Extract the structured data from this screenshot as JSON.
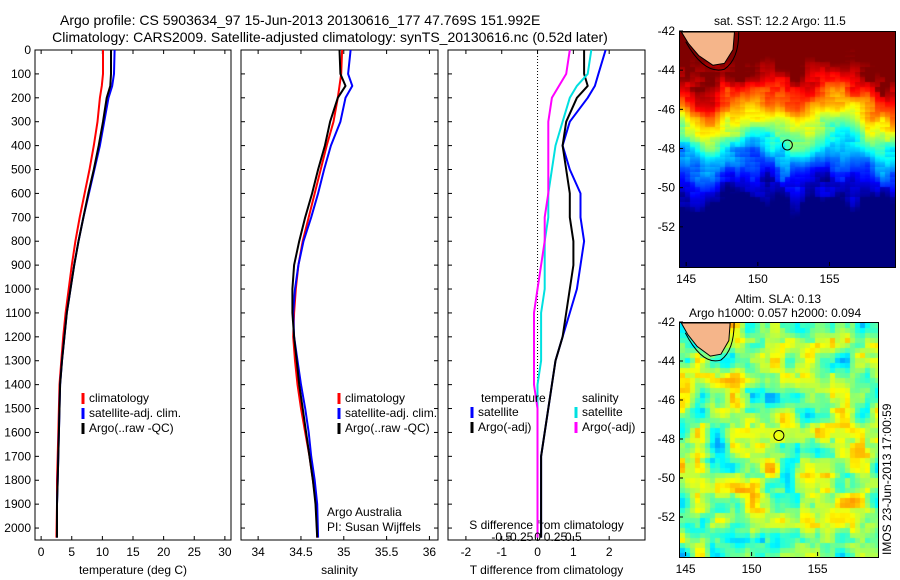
{
  "titles": {
    "line1": "Argo profile: CS 5903634_97 15-Jun-2013 20130616_177 47.769S 151.992E",
    "line2": "Climatology: CARS2009. Satellite-adjusted climatology: synTS_20130616.nc (0.52d later)"
  },
  "chart_data": [
    {
      "type": "line",
      "name": "temperature",
      "xlabel": "temperature (deg C)",
      "ylabel": "",
      "xlim": [
        -1,
        31
      ],
      "ylim": [
        2050,
        0
      ],
      "xticks": [
        0,
        5,
        10,
        15,
        20,
        25,
        30
      ],
      "yticks": [
        0,
        100,
        200,
        300,
        400,
        500,
        600,
        700,
        800,
        900,
        1000,
        1100,
        1200,
        1300,
        1400,
        1500,
        1600,
        1700,
        1800,
        1900,
        2000
      ],
      "legend": [
        "climatology",
        "satellite-adj. clim.",
        "Argo(..raw -QC)"
      ],
      "series": [
        {
          "name": "climatology",
          "color": "#ff0000",
          "x": [
            10.1,
            10.1,
            9.9,
            9.6,
            9.2,
            8.6,
            7.9,
            7.1,
            6.3,
            5.6,
            5.0,
            4.5,
            4.0,
            3.6,
            3.3,
            3.0,
            2.9,
            2.8,
            2.7,
            2.6,
            2.6,
            2.5
          ],
          "y": [
            0,
            100,
            150,
            200,
            300,
            400,
            500,
            600,
            700,
            800,
            900,
            1000,
            1100,
            1200,
            1300,
            1400,
            1500,
            1600,
            1700,
            1800,
            1900,
            2040
          ]
        },
        {
          "name": "satellite-adj. clim.",
          "color": "#0000ff",
          "x": [
            12.0,
            11.9,
            11.6,
            11.0,
            10.3,
            9.6,
            8.7,
            7.8,
            6.9,
            6.1,
            5.4,
            4.8,
            4.2,
            3.8,
            3.4,
            3.1,
            3.0,
            2.9,
            2.8,
            2.7,
            2.6,
            2.6
          ],
          "y": [
            0,
            100,
            150,
            200,
            300,
            400,
            500,
            600,
            700,
            800,
            900,
            1000,
            1100,
            1200,
            1300,
            1400,
            1500,
            1600,
            1700,
            1800,
            1900,
            2040
          ]
        },
        {
          "name": "Argo(..raw -QC)",
          "color": "#000000",
          "x": [
            11.4,
            11.4,
            11.3,
            10.7,
            10.1,
            9.4,
            8.6,
            7.7,
            6.9,
            6.1,
            5.4,
            4.8,
            4.2,
            3.8,
            3.4,
            3.1,
            3.0,
            2.9,
            2.8,
            2.7,
            2.6,
            2.6
          ],
          "y": [
            0,
            100,
            150,
            200,
            300,
            400,
            500,
            600,
            700,
            800,
            900,
            1000,
            1100,
            1200,
            1300,
            1400,
            1500,
            1600,
            1700,
            1800,
            1900,
            2040
          ]
        }
      ]
    },
    {
      "type": "line",
      "name": "salinity",
      "xlabel": "salinity",
      "xlim": [
        33.8,
        36.1
      ],
      "ylim": [
        2050,
        0
      ],
      "xticks": [
        34,
        34.5,
        35,
        35.5,
        36
      ],
      "xticklabels": [
        "34",
        "34.5",
        "35",
        "35.5",
        "36"
      ],
      "legend": [
        "climatology",
        "satellite-adj. clim.",
        "Argo(..raw -QC)"
      ],
      "annotation": [
        "Argo Australia",
        "PI: Susan Wijffels"
      ],
      "series": [
        {
          "name": "climatology",
          "color": "#ff0000",
          "x": [
            34.98,
            34.97,
            34.95,
            34.93,
            34.88,
            34.8,
            34.73,
            34.66,
            34.59,
            34.52,
            34.47,
            34.44,
            34.42,
            34.41,
            34.43,
            34.46,
            34.5,
            34.55,
            34.6,
            34.64,
            34.68,
            34.69
          ],
          "y": [
            0,
            100,
            150,
            200,
            300,
            400,
            500,
            600,
            700,
            800,
            900,
            1000,
            1100,
            1200,
            1300,
            1400,
            1500,
            1600,
            1700,
            1800,
            1900,
            2040
          ]
        },
        {
          "name": "satellite-adj. clim.",
          "color": "#0000ff",
          "x": [
            35.08,
            35.05,
            35.1,
            35.02,
            34.96,
            34.85,
            34.77,
            34.7,
            34.62,
            34.53,
            34.47,
            34.43,
            34.41,
            34.42,
            34.46,
            34.5,
            34.55,
            34.59,
            34.62,
            34.66,
            34.69,
            34.7
          ],
          "y": [
            0,
            100,
            150,
            200,
            300,
            400,
            500,
            600,
            700,
            800,
            900,
            1000,
            1100,
            1200,
            1300,
            1400,
            1500,
            1600,
            1700,
            1800,
            1900,
            2040
          ]
        },
        {
          "name": "Argo(..raw -QC)",
          "color": "#000000",
          "x": [
            34.95,
            34.96,
            35.02,
            34.93,
            34.84,
            34.78,
            34.7,
            34.63,
            34.55,
            34.48,
            34.42,
            34.4,
            34.4,
            34.42,
            34.45,
            34.48,
            34.52,
            34.56,
            34.6,
            34.64,
            34.67,
            34.69
          ],
          "y": [
            0,
            100,
            150,
            200,
            300,
            400,
            500,
            600,
            700,
            800,
            900,
            1000,
            1100,
            1200,
            1300,
            1400,
            1500,
            1600,
            1700,
            1800,
            1900,
            2040
          ]
        }
      ]
    },
    {
      "type": "line",
      "name": "differences",
      "xlabel": "T difference from climatology",
      "xlabel_top": "S difference from climatology",
      "xlim": [
        -2.5,
        3
      ],
      "ylim": [
        2050,
        0
      ],
      "xticks": [
        -2,
        -1,
        0,
        1,
        2
      ],
      "xticklabels": [
        "-2",
        "-1",
        "0",
        "1",
        "2"
      ],
      "sticks": [
        -1,
        -0.5,
        0.5,
        1
      ],
      "sticklabels": [
        "-0.5",
        "-0.25",
        "0.25",
        "0.5"
      ],
      "legend_headers": [
        "temperature",
        "salinity"
      ],
      "legend_left": [
        "satellite",
        "Argo(-adj)"
      ],
      "legend_right": [
        "satellite",
        "Argo(-adj)"
      ],
      "series": [
        {
          "name": "temperature satellite",
          "color": "#0000ff",
          "x": [
            1.9,
            1.7,
            1.6,
            1.4,
            0.9,
            0.7,
            0.9,
            1.2,
            1.2,
            1.3,
            1.2,
            1.1,
            0.9,
            0.7,
            0.5,
            0.4,
            0.3,
            0.2,
            0.1,
            0.1,
            0.1,
            0.1
          ],
          "y": [
            0,
            100,
            150,
            200,
            300,
            400,
            500,
            600,
            700,
            800,
            900,
            1000,
            1100,
            1200,
            1300,
            1400,
            1500,
            1600,
            1700,
            1800,
            1900,
            2040
          ]
        },
        {
          "name": "temperature Argo(-adj)",
          "color": "#000000",
          "x": [
            1.3,
            1.3,
            1.4,
            1.1,
            0.8,
            0.7,
            0.8,
            0.9,
            0.9,
            1.0,
            1.0,
            0.9,
            0.8,
            0.7,
            0.5,
            0.4,
            0.3,
            0.2,
            0.1,
            0.1,
            0.1,
            0.1
          ],
          "y": [
            0,
            100,
            150,
            200,
            300,
            400,
            500,
            600,
            700,
            800,
            900,
            1000,
            1100,
            1200,
            1300,
            1400,
            1500,
            1600,
            1700,
            1800,
            1900,
            2040
          ]
        },
        {
          "name": "salinity satellite",
          "color": "#00e0e0",
          "x": [
            1.5,
            1.4,
            1.1,
            0.9,
            0.7,
            0.5,
            0.4,
            0.3,
            0.3,
            0.2,
            0.2,
            0.2,
            0.1,
            0.1,
            0.1,
            0.0,
            0.0,
            0.0,
            0.0,
            0.0,
            0.0,
            0.0
          ],
          "y": [
            0,
            100,
            150,
            200,
            300,
            400,
            500,
            600,
            700,
            800,
            900,
            1000,
            1100,
            1200,
            1300,
            1400,
            1500,
            1600,
            1700,
            1800,
            1900,
            2040
          ]
        },
        {
          "name": "salinity Argo(-adj)",
          "color": "#ff00ff",
          "x": [
            0.9,
            0.8,
            0.6,
            0.4,
            0.3,
            0.3,
            0.3,
            0.3,
            0.2,
            0.2,
            0.1,
            0.0,
            -0.1,
            -0.1,
            -0.1,
            -0.1,
            0.0,
            0.0,
            0.0,
            0.0,
            0.0,
            0.0
          ],
          "y": [
            0,
            100,
            150,
            200,
            300,
            400,
            500,
            600,
            700,
            800,
            900,
            1000,
            1100,
            1200,
            1300,
            1400,
            1500,
            1600,
            1700,
            1800,
            1900,
            2040
          ]
        }
      ]
    },
    {
      "type": "heatmap",
      "name": "sst-map",
      "title": "sat. SST: 12.2  Argo: 11.5",
      "xlim": [
        144.5,
        159.5
      ],
      "ylim": [
        -54,
        -42
      ],
      "xticks": [
        145,
        150,
        155
      ],
      "yticks": [
        -42,
        -44,
        -46,
        -48,
        -50,
        -52
      ],
      "marker": {
        "lon": 151.992,
        "lat": -47.769
      }
    },
    {
      "type": "heatmap",
      "name": "sla-map",
      "title_line1": "Altim. SLA: 0.13",
      "title_line2": "Argo h1000: 0.057 h2000: 0.094",
      "xlim": [
        144.5,
        159.5
      ],
      "ylim": [
        -54,
        -42
      ],
      "xticks": [
        145,
        150,
        155
      ],
      "yticks": [
        -42,
        -44,
        -46,
        -48,
        -50,
        -52
      ],
      "marker": {
        "lon": 151.992,
        "lat": -47.769
      }
    }
  ],
  "footer": "IMOS 23-Jun-2013 17:00:59",
  "colors": {
    "red": "#ff0000",
    "blue": "#0000ff",
    "black": "#000000",
    "cyan": "#00e0e0",
    "magenta": "#ff00ff"
  }
}
